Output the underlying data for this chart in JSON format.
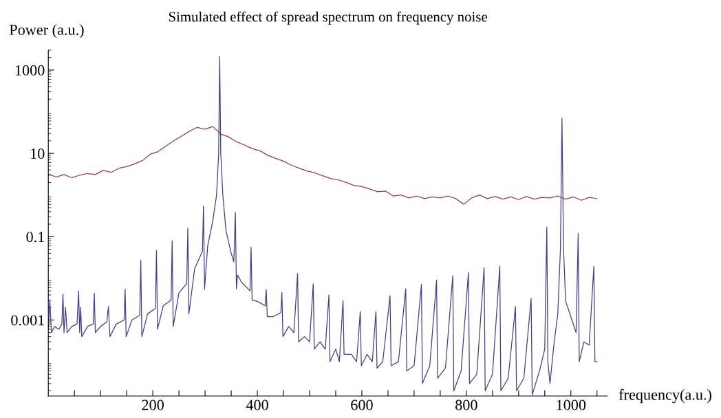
{
  "chart_data": {
    "type": "line",
    "title": "Simulated effect of spread spectrum on frequency noise",
    "xlabel": "frequency(a.u.)",
    "ylabel": "Power (a.u.)",
    "log": "y",
    "xlim": [
      0,
      1070
    ],
    "ylim": [
      1.5e-05,
      3000
    ],
    "xticks": [
      {
        "value": 50,
        "label": null
      },
      {
        "value": 100,
        "label": null
      },
      {
        "value": 150,
        "label": null
      },
      200,
      {
        "value": 250,
        "label": null
      },
      {
        "value": 300,
        "label": null
      },
      {
        "value": 350,
        "label": null
      },
      400,
      {
        "value": 450,
        "label": null
      },
      {
        "value": 500,
        "label": null
      },
      {
        "value": 550,
        "label": null
      },
      600,
      {
        "value": 650,
        "label": null
      },
      {
        "value": 700,
        "label": null
      },
      {
        "value": 750,
        "label": null
      },
      800,
      {
        "value": 850,
        "label": null
      },
      {
        "value": 900,
        "label": null
      },
      {
        "value": 950,
        "label": null
      },
      1000,
      {
        "value": 1050,
        "label": null
      }
    ],
    "yticks": [
      0.001,
      0.1,
      10,
      1000
    ],
    "grid": false,
    "marker": "none",
    "line_style": "solid",
    "series": [
      {
        "color": "#9a3366",
        "x": [
          0,
          15,
          30,
          45,
          60,
          75,
          90,
          105,
          120,
          135,
          150,
          165,
          180,
          195,
          210,
          225,
          240,
          255,
          270,
          285,
          300,
          315,
          330,
          345,
          360,
          375,
          390,
          405,
          420,
          435,
          450,
          465,
          480,
          495,
          510,
          525,
          540,
          555,
          570,
          585,
          600,
          615,
          630,
          645,
          660,
          675,
          690,
          705,
          720,
          735,
          750,
          765,
          780,
          795,
          810,
          825,
          840,
          855,
          870,
          885,
          900,
          915,
          930,
          945,
          960,
          975,
          990,
          1005,
          1020,
          1035,
          1050
        ],
        "values": [
          3.2,
          2.7,
          3.1,
          2.6,
          3.0,
          3.3,
          3.1,
          3.9,
          3.5,
          4.4,
          4.8,
          5.6,
          6.7,
          9.5,
          11,
          15,
          20,
          26,
          34,
          42,
          38,
          44,
          29,
          25,
          19,
          16,
          13,
          11.5,
          9,
          7.6,
          6.5,
          5.2,
          4.4,
          3.8,
          3.4,
          2.9,
          2.5,
          2.3,
          2.0,
          1.7,
          1.6,
          1.4,
          1.2,
          1.25,
          0.95,
          1.0,
          0.85,
          0.95,
          0.82,
          0.9,
          0.85,
          0.95,
          0.82,
          0.6,
          0.85,
          1.0,
          0.82,
          0.92,
          0.8,
          0.9,
          0.78,
          0.92,
          0.8,
          0.88,
          0.85,
          0.95,
          0.8,
          0.9,
          0.75,
          0.88,
          0.82
        ]
      },
      {
        "color": "#3d3d9e",
        "x": [
          0,
          3,
          6,
          12,
          20,
          26,
          28,
          30,
          33,
          36,
          45,
          55,
          58,
          60,
          62,
          64,
          75,
          86,
          88,
          90,
          100,
          112,
          115,
          118,
          130,
          145,
          147,
          149,
          160,
          175,
          177,
          179,
          190,
          205,
          207,
          209,
          220,
          235,
          237,
          239,
          250,
          265,
          267,
          269,
          280,
          295,
          297,
          299,
          305,
          315,
          322,
          326,
          328,
          330,
          334,
          340,
          350,
          355,
          358,
          360,
          362,
          370,
          380,
          386,
          388,
          390,
          400,
          415,
          417,
          419,
          430,
          445,
          447,
          449,
          460,
          470,
          477,
          479,
          490,
          500,
          507,
          509,
          520,
          530,
          537,
          539,
          550,
          557,
          564,
          566,
          580,
          590,
          597,
          599,
          610,
          620,
          627,
          629,
          640,
          654,
          656,
          670,
          684,
          686,
          700,
          714,
          716,
          730,
          743,
          745,
          760,
          774,
          776,
          790,
          804,
          806,
          820,
          834,
          836,
          850,
          864,
          866,
          880,
          894,
          896,
          910,
          924,
          926,
          940,
          950,
          954,
          956,
          960,
          968,
          975,
          980,
          983,
          986,
          990,
          1000,
          1010,
          1014,
          1016,
          1025,
          1035,
          1044,
          1046,
          1050
        ],
        "values": [
          0.0006,
          0.003,
          0.0005,
          0.0007,
          0.0006,
          0.0008,
          0.0042,
          0.0005,
          0.002,
          0.0005,
          0.0007,
          0.0008,
          0.005,
          0.0005,
          0.002,
          0.0004,
          0.0007,
          0.0008,
          0.0044,
          0.0005,
          0.0007,
          0.0009,
          0.0021,
          0.0004,
          0.0008,
          0.001,
          0.0055,
          0.0004,
          0.001,
          0.0013,
          0.027,
          0.0004,
          0.0014,
          0.0019,
          0.046,
          0.0006,
          0.0022,
          0.003,
          0.079,
          0.0007,
          0.0045,
          0.0075,
          0.16,
          0.0014,
          0.017,
          0.045,
          0.54,
          0.0055,
          0.06,
          0.25,
          1.0,
          10,
          2100,
          10,
          1.0,
          0.14,
          0.04,
          0.025,
          0.38,
          0.0056,
          0.012,
          0.008,
          0.006,
          0.005,
          0.056,
          0.003,
          0.0028,
          0.0022,
          0.0054,
          0.0012,
          0.0012,
          0.0015,
          0.0046,
          0.0004,
          0.0007,
          0.0005,
          0.013,
          0.0003,
          0.0004,
          0.0003,
          0.0074,
          0.0002,
          0.0003,
          0.0002,
          0.004,
          0.0001,
          0.0002,
          0.0001,
          0.0029,
          0.00015,
          0.00015,
          0.0001,
          0.0016,
          8e-05,
          0.00015,
          0.0001,
          0.0016,
          7e-05,
          0.0001,
          0.0038,
          8e-05,
          0.0001,
          0.0056,
          6e-05,
          8e-05,
          0.0072,
          3e-05,
          8e-05,
          0.009,
          4e-05,
          7e-05,
          0.0115,
          2e-05,
          6e-05,
          0.014,
          3e-05,
          5e-05,
          0.018,
          2e-05,
          5e-05,
          0.0195,
          2e-05,
          4e-05,
          0.0021,
          2e-05,
          4e-05,
          0.0033,
          1.6e-05,
          6e-05,
          0.0002,
          0.17,
          0.0001,
          3e-05,
          0.00029,
          0.0014,
          0.05,
          70,
          0.05,
          0.0028,
          0.0012,
          0.0005,
          0.12,
          0.0001,
          0.0003,
          0.00025,
          0.0195,
          0.0001,
          0.0001
        ]
      }
    ]
  }
}
